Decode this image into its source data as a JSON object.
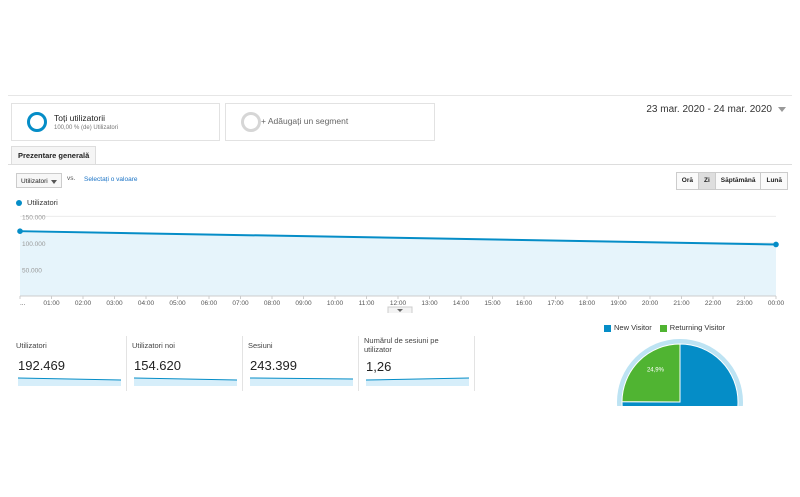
{
  "segments": {
    "all_users_title": "Toți utilizatorii",
    "all_users_sub": "100,00 % (de) Utilizatori",
    "add_segment": "+ Adăugați un segment"
  },
  "date_range": "23 mar. 2020 - 24 mar. 2020",
  "tab_overview": "Prezentare generală",
  "metric_select": "Utilizatori",
  "vs": "vs.",
  "select_value": "Selectați o valoare",
  "granularity": [
    "Oră",
    "Zi",
    "Săptămână",
    "Lună"
  ],
  "granularity_active": "Zi",
  "colors": {
    "accent": "#058dc7",
    "green": "#50b432",
    "link": "#1a73c6"
  },
  "chart_data": {
    "type": "line",
    "legend": "Utilizatori",
    "ytick_labels": [
      "150.000",
      "100.000",
      "50.000"
    ],
    "yticks": [
      150000,
      100000,
      50000
    ],
    "ylim": [
      0,
      160000
    ],
    "x": [
      "...",
      "01:00",
      "02:00",
      "03:00",
      "04:00",
      "05:00",
      "06:00",
      "07:00",
      "08:00",
      "09:00",
      "10:00",
      "11:00",
      "12:00",
      "13:00",
      "14:00",
      "15:00",
      "16:00",
      "17:00",
      "18:00",
      "19:00",
      "20:00",
      "21:00",
      "22:00",
      "23:00",
      "00:00"
    ],
    "series": [
      {
        "name": "Utilizatori",
        "points": [
          {
            "x": "...",
            "y": 122000
          },
          {
            "x": "00:00",
            "y": 97000
          }
        ]
      }
    ]
  },
  "stats": [
    {
      "label": "Utilizatori",
      "value": "192.469"
    },
    {
      "label": "Utilizatori noi",
      "value": "154.620"
    },
    {
      "label": "Sesiuni",
      "value": "243.399"
    },
    {
      "label": "Numărul de sesiuni pe utilizator",
      "value": "1,26"
    }
  ],
  "pie": {
    "legend": [
      "New Visitor",
      "Returning Visitor"
    ],
    "slices": [
      {
        "name": "New Visitor",
        "value": 75.1,
        "color": "#058dc7"
      },
      {
        "name": "Returning Visitor",
        "value": 24.9,
        "color": "#50b432",
        "label": "24,9%"
      }
    ]
  }
}
